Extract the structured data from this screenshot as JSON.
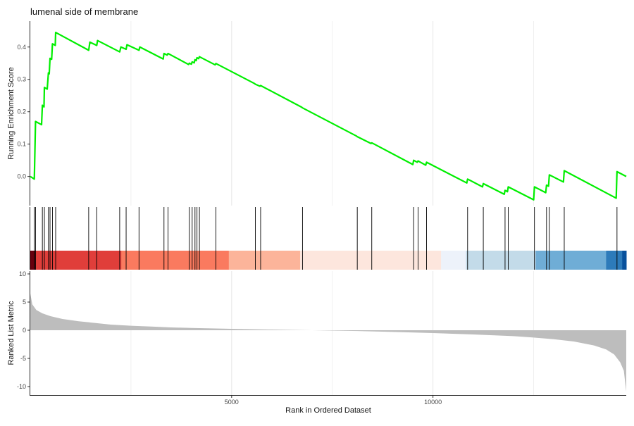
{
  "chart_data": {
    "type": "line",
    "title": "lumenal side of membrane",
    "xlabel": "Rank in Ordered Dataset",
    "xlim": [
      0,
      14800
    ],
    "x_ticks": [
      {
        "value": 5000,
        "label": "5000"
      },
      {
        "value": 10000,
        "label": "10000"
      }
    ],
    "grid": true,
    "panels": {
      "running_score": {
        "ylabel": "Running Enrichment Score",
        "ylim": [
          -0.09,
          0.48
        ],
        "y_ticks": [
          {
            "value": 0.0,
            "label": "0.0"
          },
          {
            "value": 0.1,
            "label": "0.1"
          },
          {
            "value": 0.2,
            "label": "0.2"
          },
          {
            "value": 0.3,
            "label": "0.3"
          },
          {
            "value": 0.4,
            "label": "0.4"
          }
        ],
        "line_color": "#00ee00",
        "points": [
          [
            0,
            0.0
          ],
          [
            100,
            -0.008
          ],
          [
            130,
            0.17
          ],
          [
            280,
            0.16
          ],
          [
            300,
            0.22
          ],
          [
            340,
            0.215
          ],
          [
            350,
            0.275
          ],
          [
            420,
            0.27
          ],
          [
            450,
            0.32
          ],
          [
            470,
            0.317
          ],
          [
            490,
            0.365
          ],
          [
            530,
            0.362
          ],
          [
            550,
            0.41
          ],
          [
            620,
            0.405
          ],
          [
            630,
            0.445
          ],
          [
            1450,
            0.39
          ],
          [
            1480,
            0.415
          ],
          [
            1650,
            0.405
          ],
          [
            1670,
            0.42
          ],
          [
            2220,
            0.385
          ],
          [
            2250,
            0.4
          ],
          [
            2380,
            0.393
          ],
          [
            2400,
            0.407
          ],
          [
            2700,
            0.39
          ],
          [
            2720,
            0.4
          ],
          [
            3300,
            0.363
          ],
          [
            3320,
            0.38
          ],
          [
            3400,
            0.375
          ],
          [
            3420,
            0.38
          ],
          [
            3930,
            0.346
          ],
          [
            3950,
            0.35
          ],
          [
            4000,
            0.347
          ],
          [
            4020,
            0.354
          ],
          [
            4070,
            0.351
          ],
          [
            4090,
            0.361
          ],
          [
            4120,
            0.358
          ],
          [
            4140,
            0.367
          ],
          [
            4180,
            0.364
          ],
          [
            4200,
            0.37
          ],
          [
            4590,
            0.345
          ],
          [
            4610,
            0.349
          ],
          [
            5570,
            0.287
          ],
          [
            5590,
            0.285
          ],
          [
            5700,
            0.279
          ],
          [
            5720,
            0.281
          ],
          [
            6740,
            0.214
          ],
          [
            6760,
            0.212
          ],
          [
            8100,
            0.125
          ],
          [
            8120,
            0.123
          ],
          [
            8460,
            0.102
          ],
          [
            8480,
            0.104
          ],
          [
            9500,
            0.037
          ],
          [
            9520,
            0.05
          ],
          [
            9610,
            0.044
          ],
          [
            9630,
            0.048
          ],
          [
            9820,
            0.035
          ],
          [
            9840,
            0.044
          ],
          [
            10840,
            -0.02
          ],
          [
            10860,
            -0.008
          ],
          [
            11230,
            -0.032
          ],
          [
            11250,
            -0.022
          ],
          [
            11770,
            -0.055
          ],
          [
            11790,
            -0.043
          ],
          [
            11850,
            -0.047
          ],
          [
            11870,
            -0.032
          ],
          [
            12500,
            -0.072
          ],
          [
            12520,
            -0.032
          ],
          [
            12800,
            -0.05
          ],
          [
            12820,
            -0.027
          ],
          [
            12870,
            -0.03
          ],
          [
            12890,
            0.005
          ],
          [
            13240,
            -0.017
          ],
          [
            13260,
            0.018
          ],
          [
            14550,
            -0.067
          ],
          [
            14570,
            0.015
          ],
          [
            14800,
            0.0
          ]
        ]
      },
      "hits": {
        "color": "#000000",
        "ranks": [
          100,
          130,
          300,
          350,
          450,
          490,
          550,
          630,
          1450,
          1650,
          2220,
          2380,
          2700,
          3320,
          3420,
          3950,
          4020,
          4090,
          4140,
          4200,
          4610,
          5590,
          5720,
          6760,
          8120,
          8480,
          9520,
          9630,
          9840,
          10860,
          11250,
          11790,
          11870,
          12520,
          12820,
          12890,
          13260,
          14570
        ]
      },
      "heat_bar": {
        "bands": [
          {
            "from": 0,
            "to": 130,
            "color": "#67000d"
          },
          {
            "from": 130,
            "to": 2260,
            "color": "#e03e3a"
          },
          {
            "from": 2260,
            "to": 4930,
            "color": "#fa7a5f"
          },
          {
            "from": 4930,
            "to": 6700,
            "color": "#fcb49a"
          },
          {
            "from": 6700,
            "to": 10200,
            "color": "#fde6dd"
          },
          {
            "from": 10200,
            "to": 10820,
            "color": "#edf2fa"
          },
          {
            "from": 10820,
            "to": 12550,
            "color": "#c3dbe9"
          },
          {
            "from": 12550,
            "to": 14300,
            "color": "#6fadd6"
          },
          {
            "from": 14300,
            "to": 14700,
            "color": "#2d7bba"
          },
          {
            "from": 14700,
            "to": 14800,
            "color": "#08519c"
          }
        ]
      },
      "ranked_metric": {
        "ylabel": "Ranked List Metric",
        "ylim": [
          -11.5,
          10.5
        ],
        "y_ticks": [
          {
            "value": 10,
            "label": "10"
          },
          {
            "value": 5,
            "label": "5"
          },
          {
            "value": 0,
            "label": "0"
          },
          {
            "value": -5,
            "label": "-5"
          },
          {
            "value": -10,
            "label": "-10"
          }
        ],
        "fill_color": "#bdbdbd",
        "points": [
          [
            0,
            6.5
          ],
          [
            50,
            4.6
          ],
          [
            150,
            3.6
          ],
          [
            300,
            3.0
          ],
          [
            500,
            2.5
          ],
          [
            800,
            2.0
          ],
          [
            1200,
            1.6
          ],
          [
            1600,
            1.3
          ],
          [
            2000,
            1.0
          ],
          [
            2500,
            0.8
          ],
          [
            3000,
            0.65
          ],
          [
            3500,
            0.5
          ],
          [
            4000,
            0.4
          ],
          [
            5000,
            0.25
          ],
          [
            6000,
            0.12
          ],
          [
            7000,
            0.0
          ],
          [
            8000,
            -0.12
          ],
          [
            9000,
            -0.3
          ],
          [
            10000,
            -0.5
          ],
          [
            11000,
            -0.75
          ],
          [
            12000,
            -1.05
          ],
          [
            12500,
            -1.3
          ],
          [
            13000,
            -1.6
          ],
          [
            13500,
            -2.0
          ],
          [
            14000,
            -2.7
          ],
          [
            14300,
            -3.4
          ],
          [
            14500,
            -4.3
          ],
          [
            14650,
            -5.7
          ],
          [
            14740,
            -7.2
          ],
          [
            14800,
            -10.9
          ]
        ]
      }
    }
  }
}
